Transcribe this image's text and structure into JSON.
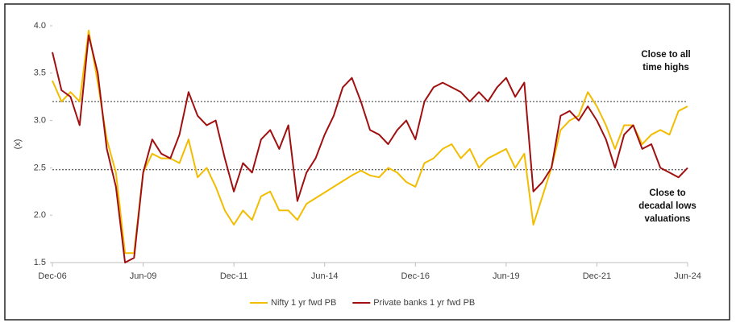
{
  "chart_data": {
    "type": "line",
    "y_label": "(x)",
    "x": [
      "2006-12",
      "2007-03",
      "2007-06",
      "2007-09",
      "2007-12",
      "2008-03",
      "2008-06",
      "2008-09",
      "2008-12",
      "2009-03",
      "2009-06",
      "2009-09",
      "2009-12",
      "2010-03",
      "2010-06",
      "2010-09",
      "2010-12",
      "2011-03",
      "2011-06",
      "2011-09",
      "2011-12",
      "2012-03",
      "2012-06",
      "2012-09",
      "2012-12",
      "2013-03",
      "2013-06",
      "2013-09",
      "2013-12",
      "2014-03",
      "2014-06",
      "2014-09",
      "2014-12",
      "2015-03",
      "2015-06",
      "2015-09",
      "2015-12",
      "2016-03",
      "2016-06",
      "2016-09",
      "2016-12",
      "2017-03",
      "2017-06",
      "2017-09",
      "2017-12",
      "2018-03",
      "2018-06",
      "2018-09",
      "2018-12",
      "2019-03",
      "2019-06",
      "2019-09",
      "2019-12",
      "2020-03",
      "2020-06",
      "2020-09",
      "2020-12",
      "2021-03",
      "2021-06",
      "2021-09",
      "2021-12",
      "2022-03",
      "2022-06",
      "2022-09",
      "2022-12",
      "2023-03",
      "2023-06",
      "2023-09",
      "2023-12",
      "2024-03",
      "2024-06"
    ],
    "series": [
      {
        "name": "Nifty 1 yr fwd PB",
        "color": "#f2bd00",
        "values": [
          3.42,
          3.2,
          3.3,
          3.2,
          3.95,
          3.4,
          2.8,
          2.45,
          1.6,
          1.6,
          2.45,
          2.65,
          2.6,
          2.6,
          2.55,
          2.8,
          2.4,
          2.5,
          2.3,
          2.05,
          1.9,
          2.05,
          1.95,
          2.2,
          2.25,
          2.05,
          2.05,
          1.95,
          2.12,
          2.18,
          2.24,
          2.3,
          2.36,
          2.42,
          2.47,
          2.42,
          2.4,
          2.5,
          2.45,
          2.35,
          2.3,
          2.55,
          2.6,
          2.7,
          2.75,
          2.6,
          2.7,
          2.5,
          2.6,
          2.65,
          2.7,
          2.5,
          2.65,
          1.9,
          2.2,
          2.5,
          2.9,
          3.0,
          3.05,
          3.3,
          3.15,
          2.95,
          2.7,
          2.95,
          2.95,
          2.75,
          2.85,
          2.9,
          2.85,
          3.1,
          3.15
        ]
      },
      {
        "name": "Private banks 1 yr fwd PB",
        "color": "#a01010",
        "values": [
          3.72,
          3.32,
          3.25,
          2.95,
          3.9,
          3.5,
          2.7,
          2.3,
          1.5,
          1.55,
          2.45,
          2.8,
          2.65,
          2.6,
          2.85,
          3.3,
          3.05,
          2.95,
          3.0,
          2.6,
          2.25,
          2.55,
          2.45,
          2.8,
          2.9,
          2.7,
          2.95,
          2.15,
          2.45,
          2.6,
          2.85,
          3.05,
          3.35,
          3.45,
          3.2,
          2.9,
          2.85,
          2.75,
          2.9,
          3.0,
          2.8,
          3.2,
          3.35,
          3.4,
          3.35,
          3.3,
          3.2,
          3.3,
          3.2,
          3.35,
          3.45,
          3.25,
          3.4,
          2.25,
          2.35,
          2.5,
          3.05,
          3.1,
          3.0,
          3.15,
          3.0,
          2.8,
          2.5,
          2.85,
          2.95,
          2.7,
          2.75,
          2.5,
          2.45,
          2.4,
          2.5
        ]
      }
    ],
    "xlim": [
      "2006-12",
      "2024-06"
    ],
    "xticks": [
      {
        "value": "2006-12",
        "label": "Dec-06"
      },
      {
        "value": "2009-06",
        "label": "Jun-09"
      },
      {
        "value": "2011-12",
        "label": "Dec-11"
      },
      {
        "value": "2014-06",
        "label": "Jun-14"
      },
      {
        "value": "2016-12",
        "label": "Dec-16"
      },
      {
        "value": "2019-06",
        "label": "Jun-19"
      },
      {
        "value": "2021-12",
        "label": "Dec-21"
      },
      {
        "value": "2024-06",
        "label": "Jun-24"
      }
    ],
    "ylim": [
      1.5,
      4.0
    ],
    "yticks": [
      1.5,
      {
        "value": 2,
        "label": "2.0"
      },
      2.5,
      {
        "value": 3,
        "label": "3.0"
      },
      3.5,
      {
        "value": 4,
        "label": "4.0"
      }
    ],
    "reference_lines": [
      3.2,
      2.48
    ],
    "annotations": [
      {
        "lines": [
          "Close to all",
          "time highs"
        ]
      },
      {
        "lines": [
          "Close to",
          "decadal lows",
          "valuations"
        ]
      }
    ],
    "legend": "bottom"
  }
}
